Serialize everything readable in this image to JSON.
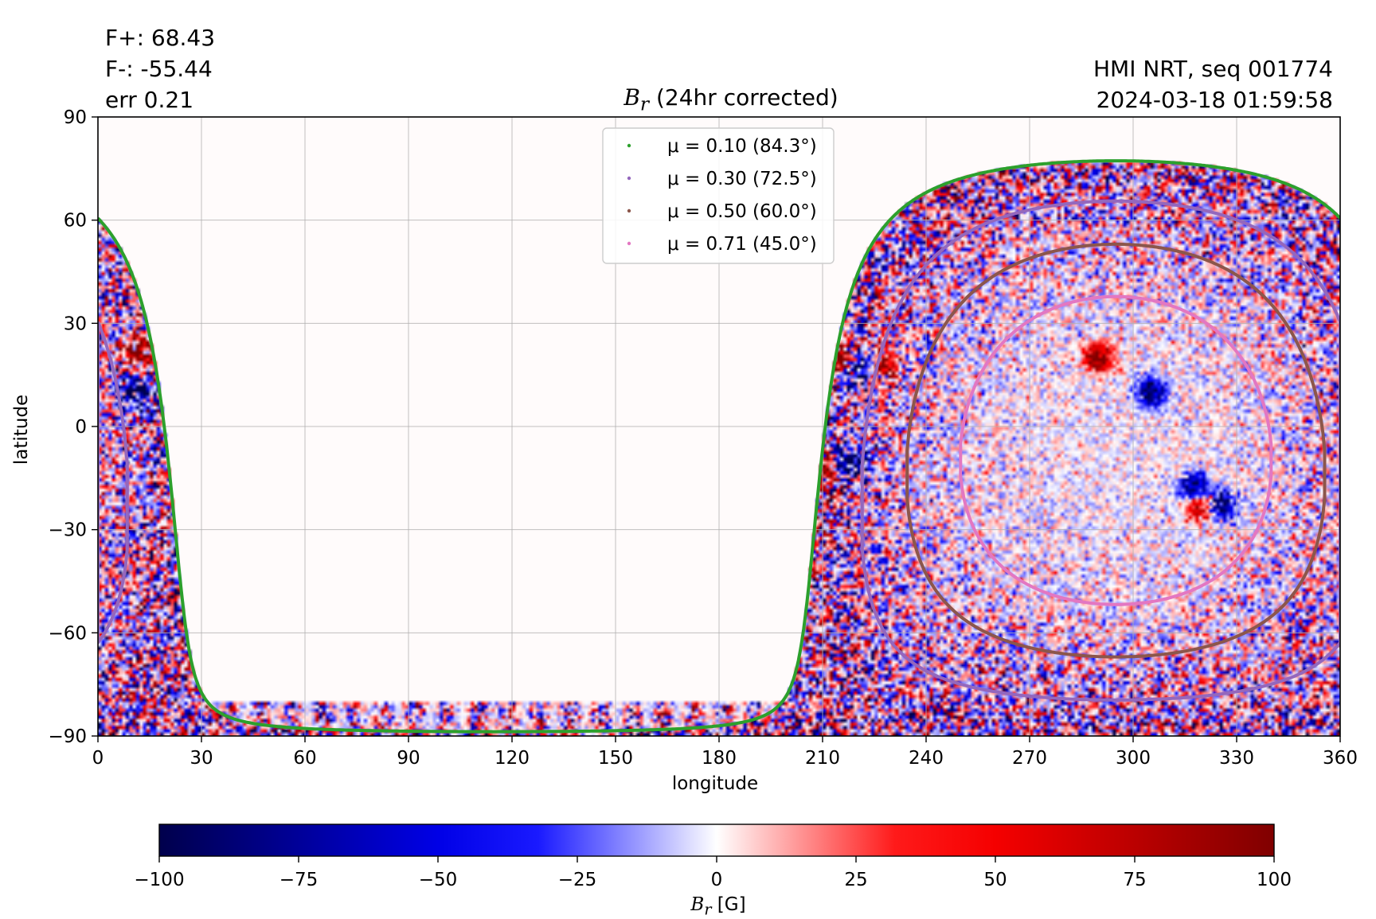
{
  "header": {
    "flux_plus": "F+: 68.43",
    "flux_minus": "F-: -55.44",
    "error": "err 0.21",
    "instrument": "HMI NRT, seq 001774",
    "timestamp": "2024-03-18 01:59:58"
  },
  "chart_data": {
    "type": "heatmap",
    "title_symbol": "B",
    "title_subscript": "r",
    "title_rest": " (24hr corrected)",
    "xlabel": "longitude",
    "ylabel": "latitude",
    "xlim": [
      0,
      360
    ],
    "ylim": [
      -90,
      90
    ],
    "xticks": [
      0,
      30,
      60,
      90,
      120,
      150,
      180,
      210,
      240,
      270,
      300,
      330,
      360
    ],
    "yticks": [
      -90,
      -60,
      -30,
      0,
      30,
      60,
      90
    ],
    "ytick_labels": [
      "−90",
      "−60",
      "−30",
      "0",
      "30",
      "60",
      "90"
    ],
    "grid": true,
    "legend_position": "upper-center",
    "legend": [
      {
        "label": "μ = 0.10 (84.3°)",
        "color": "#2ca02c"
      },
      {
        "label": "μ = 0.30 (72.5°)",
        "color": "#9467bd"
      },
      {
        "label": "μ = 0.50 (60.0°)",
        "color": "#8c564b"
      },
      {
        "label": "μ = 0.71 (45.0°)",
        "color": "#e377c2"
      }
    ],
    "disk_center": {
      "lon": 295,
      "lat": -7
    },
    "contours": [
      {
        "mu": 0.1,
        "angle_deg": 84.3,
        "color": "#2ca02c"
      },
      {
        "mu": 0.3,
        "angle_deg": 72.5,
        "color": "#9467bd"
      },
      {
        "mu": 0.5,
        "angle_deg": 60.0,
        "color": "#8c564b"
      },
      {
        "mu": 0.71,
        "angle_deg": 45.0,
        "color": "#e377c2"
      }
    ],
    "active_regions": [
      {
        "lon": 215,
        "lat": 20,
        "polarity": "positive"
      },
      {
        "lon": 220,
        "lat": 17,
        "polarity": "negative"
      },
      {
        "lon": 228,
        "lat": 18,
        "polarity": "positive"
      },
      {
        "lon": 210,
        "lat": -12,
        "polarity": "positive"
      },
      {
        "lon": 218,
        "lat": -10,
        "polarity": "negative"
      },
      {
        "lon": 12,
        "lat": 22,
        "polarity": "positive"
      },
      {
        "lon": 11,
        "lat": 10,
        "polarity": "negative"
      },
      {
        "lon": 305,
        "lat": 10,
        "polarity": "negative"
      },
      {
        "lon": 320,
        "lat": -23,
        "polarity": "positive"
      },
      {
        "lon": 325,
        "lat": -23,
        "polarity": "negative"
      },
      {
        "lon": 290,
        "lat": 20,
        "polarity": "positive"
      },
      {
        "lon": 318,
        "lat": -18,
        "polarity": "negative"
      }
    ],
    "colorbar": {
      "label_symbol": "B",
      "label_subscript": "r",
      "label_unit": "[G]",
      "range": [
        -100,
        100
      ],
      "ticks": [
        -100,
        -75,
        -50,
        -25,
        0,
        25,
        50,
        75,
        100
      ],
      "tick_labels": [
        "−100",
        "−75",
        "−50",
        "−25",
        "0",
        "25",
        "50",
        "75",
        "100"
      ],
      "colormap": "seismic"
    }
  }
}
